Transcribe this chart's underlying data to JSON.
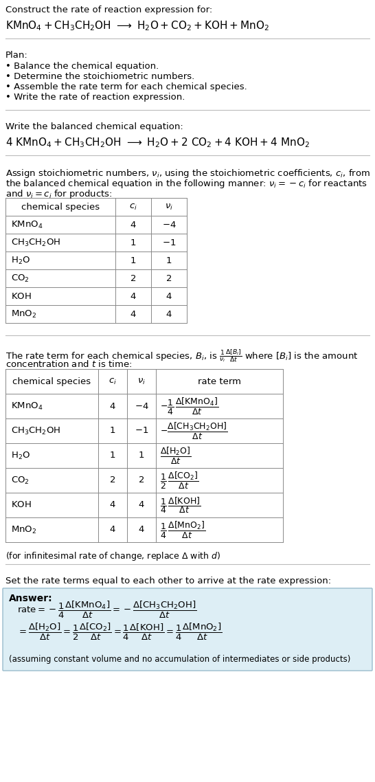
{
  "bg_color": "#ffffff",
  "text_color": "#000000",
  "title_line1": "Construct the rate of reaction expression for:",
  "plan_header": "Plan:",
  "plan_items": [
    "• Balance the chemical equation.",
    "• Determine the stoichiometric numbers.",
    "• Assemble the rate term for each chemical species.",
    "• Write the rate of reaction expression."
  ],
  "balanced_header": "Write the balanced chemical equation:",
  "set_rate_header": "Set the rate terms equal to each other to arrive at the rate expression:",
  "infinitesimal_note": "(for infinitesimal rate of change, replace Δ with d)",
  "answer_bg": "#ddeef5",
  "answer_border": "#99bbcc",
  "table1_species": [
    "KMnO_4",
    "CH_3CH_2OH",
    "H_2O",
    "CO_2",
    "KOH",
    "MnO_2"
  ],
  "table1_ci": [
    "4",
    "1",
    "1",
    "2",
    "4",
    "4"
  ],
  "table1_vi": [
    "-4",
    "-1",
    "1",
    "2",
    "4",
    "4"
  ],
  "table2_species": [
    "KMnO_4",
    "CH_3CH_2OH",
    "H_2O",
    "CO_2",
    "KOH",
    "MnO_2"
  ],
  "table2_ci": [
    "4",
    "1",
    "1",
    "2",
    "4",
    "4"
  ],
  "table2_vi": [
    "-4",
    "-1",
    "1",
    "2",
    "4",
    "4"
  ]
}
